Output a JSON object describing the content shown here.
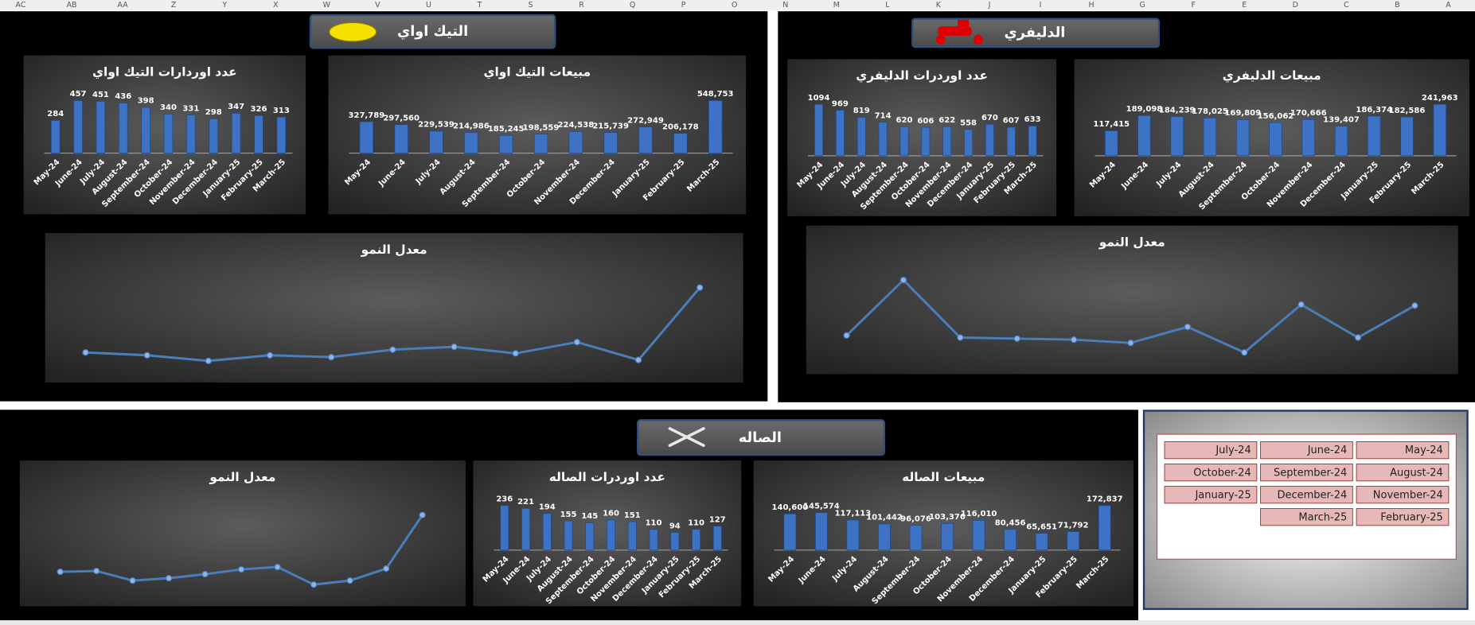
{
  "column_headers": [
    "AC",
    "AB",
    "AA",
    "Z",
    "Y",
    "X",
    "W",
    "V",
    "U",
    "T",
    "S",
    "R",
    "Q",
    "P",
    "O",
    "N",
    "M",
    "L",
    "K",
    "J",
    "I",
    "H",
    "G",
    "F",
    "E",
    "D",
    "C",
    "B",
    "A"
  ],
  "panels": [
    {
      "title": "التيك اواي"
    },
    {
      "title": "الدليفري"
    },
    {
      "title": "الصاله"
    }
  ],
  "slicer": {
    "items": [
      "May-24",
      "June-24",
      "July-24",
      "August-24",
      "September-24",
      "October-24",
      "November-24",
      "December-24",
      "January-25",
      "February-25",
      "March-25"
    ]
  },
  "chart_data": [
    {
      "type": "bar",
      "title": "مبيعات التيك اواي",
      "color": "#3d72c4",
      "categories": [
        "May-24",
        "June-24",
        "July-24",
        "August-24",
        "September-24",
        "October-24",
        "November-24",
        "December-24",
        "January-25",
        "February-25",
        "March-25"
      ],
      "values": [
        327789,
        297560,
        229539,
        214986,
        185245,
        198559,
        224538,
        215739,
        272949,
        206178,
        548753
      ],
      "value_labels": [
        "327,789",
        "297,560",
        "229,539",
        "214,986",
        "185,245",
        "198,559",
        "224,538",
        "215,739",
        "272,949",
        "206,178",
        "548,753"
      ]
    },
    {
      "type": "bar",
      "title": "عدد اوردارات التيك اواي",
      "color": "#3d72c4",
      "categories": [
        "May-24",
        "June-24",
        "July-24",
        "August-24",
        "September-24",
        "October-24",
        "November-24",
        "December-24",
        "January-25",
        "February-25",
        "March-25"
      ],
      "values": [
        284,
        457,
        451,
        436,
        398,
        340,
        331,
        298,
        347,
        326,
        313
      ]
    },
    {
      "type": "line",
      "title": "معدل النمو",
      "color": "#4a7ebb",
      "values": [
        25,
        22,
        16,
        22,
        20,
        28,
        31,
        24,
        36,
        17,
        94
      ]
    },
    {
      "type": "bar",
      "title": "مبيعات الدليفري",
      "color": "#3d72c4",
      "categories": [
        "May-24",
        "June-24",
        "July-24",
        "August-24",
        "September-24",
        "October-24",
        "November-24",
        "December-24",
        "January-25",
        "February-25",
        "March-25"
      ],
      "values": [
        117415,
        189098,
        184239,
        178025,
        169809,
        156062,
        170666,
        139407,
        186374,
        182586,
        241963
      ],
      "value_labels": [
        "117,415",
        "189,098",
        "184,239",
        "178,025",
        "169,809",
        "156,062",
        "170,666",
        "139,407",
        "186,374",
        "182,586",
        "241,963"
      ]
    },
    {
      "type": "bar",
      "title": "عدد اوردرات الدليفري",
      "color": "#3d72c4",
      "categories": [
        "May-24",
        "June-24",
        "July-24",
        "August-24",
        "September-24",
        "October-24",
        "November-24",
        "December-24",
        "January-25",
        "February-25",
        "March-25"
      ],
      "values": [
        1094,
        969,
        819,
        714,
        620,
        606,
        622,
        558,
        670,
        607,
        633
      ]
    },
    {
      "type": "line",
      "title": "معدل النمو",
      "color": "#4a7ebb",
      "values": [
        50,
        102,
        48,
        47,
        46,
        43,
        58,
        34,
        79,
        48,
        78
      ]
    },
    {
      "type": "line",
      "title": "معدل النمو",
      "color": "#4a7ebb",
      "values": [
        33,
        34,
        22,
        25,
        30,
        36,
        39,
        17,
        22,
        37,
        104
      ]
    },
    {
      "type": "bar",
      "title": "عدد اوردرات الصاله",
      "color": "#3d72c4",
      "categories": [
        "May-24",
        "June-24",
        "July-24",
        "August-24",
        "September-24",
        "October-24",
        "November-24",
        "December-24",
        "January-25",
        "February-25",
        "March-25"
      ],
      "values": [
        236,
        221,
        194,
        155,
        145,
        160,
        151,
        110,
        94,
        110,
        127
      ]
    },
    {
      "type": "bar",
      "title": "مبيعات الصاله",
      "color": "#3d72c4",
      "categories": [
        "May-24",
        "June-24",
        "July-24",
        "August-24",
        "September-24",
        "October-24",
        "November-24",
        "December-24",
        "January-25",
        "February-25",
        "March-25"
      ],
      "values": [
        140600,
        145574,
        117113,
        101442,
        96076,
        103376,
        116010,
        80456,
        65651,
        71792,
        172837
      ],
      "value_labels": [
        "140,600",
        "145,574",
        "117,113",
        "101,442",
        "96,076",
        "103,376",
        "116,010",
        "80,456",
        "65,651",
        "71,792",
        "172,837"
      ]
    }
  ]
}
